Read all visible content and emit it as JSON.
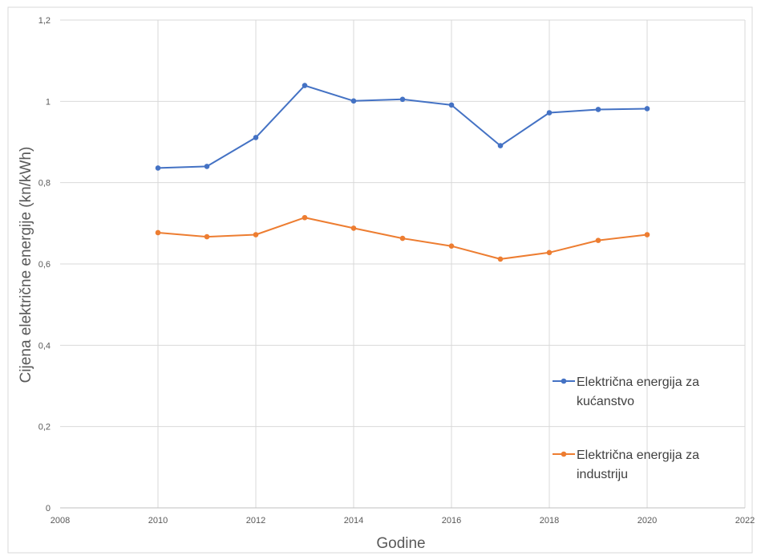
{
  "chart_data": {
    "type": "line",
    "xlabel": "Godine",
    "ylabel": "Cijena električne energije (kn/kWh)",
    "xlim": [
      2008,
      2022
    ],
    "ylim": [
      0,
      1.2
    ],
    "x_ticks": [
      "2008",
      "2010",
      "2012",
      "2014",
      "2016",
      "2018",
      "2020",
      "2022"
    ],
    "y_ticks": [
      "0",
      "0,2",
      "0,4",
      "0,6",
      "0,8",
      "1",
      "1,2"
    ],
    "grid": true,
    "legend_position": "right",
    "x": [
      2010,
      2011,
      2012,
      2013,
      2014,
      2015,
      2016,
      2017,
      2018,
      2019,
      2020
    ],
    "series": [
      {
        "name_lines": [
          "Električna energija za",
          "kućanstvo"
        ],
        "color": "#4472C4",
        "values": [
          0.836,
          0.84,
          0.911,
          1.039,
          1.001,
          1.005,
          0.991,
          0.891,
          0.972,
          0.98,
          0.982
        ]
      },
      {
        "name_lines": [
          "Električna energija za",
          "industriju"
        ],
        "color": "#ED7D31",
        "values": [
          0.677,
          0.667,
          0.672,
          0.714,
          0.688,
          0.663,
          0.644,
          0.612,
          0.628,
          0.658,
          0.672
        ]
      }
    ]
  }
}
